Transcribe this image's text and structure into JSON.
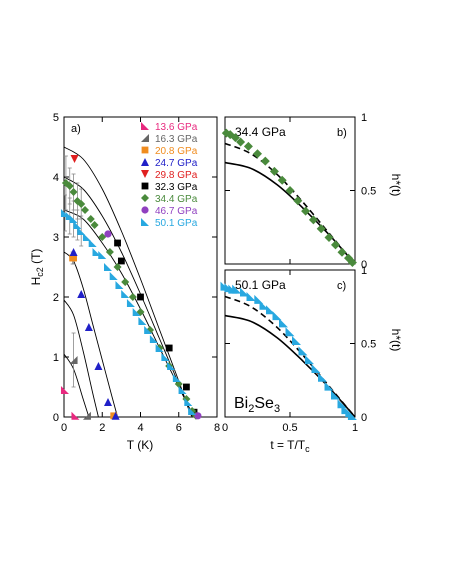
{
  "chart_data": [
    {
      "type": "scatter",
      "panel_label": "a)",
      "xlabel": "T (K)",
      "ylabel_main": "H",
      "ylabel_sub": "c2",
      "ylabel_unit": " (T)",
      "xlim": [
        0,
        8
      ],
      "ylim": [
        0,
        5
      ],
      "xticks": [
        0,
        2,
        4,
        6,
        8
      ],
      "yticks": [
        0,
        1,
        2,
        3,
        4,
        5
      ],
      "legend_position": "top-right",
      "series": [
        {
          "name": "13.6 GPa",
          "color": "#e8297f",
          "marker": "triangle-left",
          "points": [
            [
              0.05,
              0.45
            ],
            [
              0.6,
              0.02
            ]
          ]
        },
        {
          "name": "16.3 GPa",
          "color": "#666666",
          "marker": "triangle-right",
          "points": [
            [
              0.5,
              0.95
            ],
            [
              1.2,
              0.02
            ]
          ],
          "errors": [
            0.45,
            0
          ]
        },
        {
          "name": "20.8 GPa",
          "color": "#f08c1e",
          "marker": "square",
          "points": [
            [
              0.45,
              2.65
            ],
            [
              0.5,
              2.65
            ],
            [
              2.6,
              0.02
            ]
          ],
          "errors": [
            0.1,
            0.1,
            0
          ]
        },
        {
          "name": "24.7 GPa",
          "color": "#2020c8",
          "marker": "triangle-up",
          "points": [
            [
              0.5,
              2.75
            ],
            [
              0.9,
              2.05
            ],
            [
              1.3,
              1.5
            ],
            [
              1.8,
              0.85
            ],
            [
              2.3,
              0.25
            ],
            [
              2.7,
              0.02
            ]
          ]
        },
        {
          "name": "29.8 GPa",
          "color": "#e02020",
          "marker": "triangle-down",
          "points": [
            [
              0.55,
              4.3
            ]
          ]
        },
        {
          "name": "32.3 GPa",
          "color": "#000000",
          "marker": "square",
          "points": [
            [
              2.8,
              2.9
            ],
            [
              3.0,
              2.6
            ],
            [
              4.0,
              2.0
            ],
            [
              5.5,
              1.15
            ],
            [
              6.4,
              0.5
            ],
            [
              6.8,
              0.08
            ]
          ]
        },
        {
          "name": "34.4 GPa",
          "color": "#4a8a3c",
          "marker": "diamond",
          "points": [
            [
              0.1,
              3.9
            ],
            [
              0.3,
              3.85
            ],
            [
              0.5,
              3.75
            ],
            [
              0.7,
              3.6
            ],
            [
              0.9,
              3.55
            ],
            [
              1.1,
              3.45
            ],
            [
              1.4,
              3.3
            ],
            [
              1.6,
              3.2
            ],
            [
              2.0,
              3.0
            ],
            [
              2.4,
              2.75
            ],
            [
              2.8,
              2.5
            ],
            [
              3.2,
              2.25
            ],
            [
              3.6,
              2.0
            ],
            [
              4.0,
              1.75
            ],
            [
              4.5,
              1.45
            ],
            [
              5.0,
              1.15
            ],
            [
              5.5,
              0.85
            ],
            [
              6.0,
              0.55
            ],
            [
              6.4,
              0.3
            ],
            [
              6.7,
              0.1
            ],
            [
              6.9,
              0.02
            ]
          ],
          "errors": [
            0.45,
            0.3,
            0.3,
            0.3,
            0.25,
            0,
            0,
            0,
            0,
            0,
            0,
            0,
            0,
            0,
            0,
            0,
            0,
            0,
            0,
            0,
            0
          ]
        },
        {
          "name": "46.7 GPa",
          "color": "#9040c0",
          "marker": "circle",
          "points": [
            [
              2.3,
              3.05
            ],
            [
              7.0,
              0.02
            ]
          ]
        },
        {
          "name": "50.1 GPa",
          "color": "#28a8e0",
          "marker": "triangle-left",
          "points": [
            [
              0.05,
              3.4
            ],
            [
              0.3,
              3.35
            ],
            [
              0.5,
              3.3
            ],
            [
              0.7,
              3.2
            ],
            [
              0.9,
              3.1
            ],
            [
              1.2,
              3.0
            ],
            [
              1.5,
              2.9
            ],
            [
              1.7,
              2.75
            ],
            [
              2.0,
              2.7
            ],
            [
              2.3,
              2.5
            ],
            [
              2.6,
              2.35
            ],
            [
              2.9,
              2.2
            ],
            [
              3.2,
              2.05
            ],
            [
              3.5,
              1.9
            ],
            [
              3.8,
              1.75
            ],
            [
              4.1,
              1.6
            ],
            [
              4.4,
              1.45
            ],
            [
              4.7,
              1.3
            ],
            [
              5.0,
              1.15
            ],
            [
              5.3,
              1.0
            ],
            [
              5.6,
              0.85
            ],
            [
              5.9,
              0.65
            ],
            [
              6.2,
              0.45
            ],
            [
              6.5,
              0.25
            ],
            [
              6.7,
              0.1
            ]
          ],
          "errors": [
            0.3,
            0.3,
            0.3,
            0.25,
            0.25,
            0,
            0,
            0,
            0,
            0,
            0,
            0,
            0,
            0,
            0,
            0,
            0,
            0,
            0,
            0,
            0,
            0,
            0,
            0,
            0
          ]
        }
      ],
      "fit_curves": [
        {
          "points": [
            [
              0,
              4.5
            ],
            [
              1,
              4.3
            ],
            [
              2,
              3.8
            ],
            [
              3,
              3.1
            ],
            [
              4,
              2.3
            ],
            [
              5,
              1.45
            ],
            [
              6,
              0.6
            ],
            [
              6.6,
              0.05
            ]
          ]
        },
        {
          "points": [
            [
              0,
              4.0
            ],
            [
              1,
              3.8
            ],
            [
              2,
              3.35
            ],
            [
              3,
              2.75
            ],
            [
              4,
              2.05
            ],
            [
              5,
              1.3
            ],
            [
              6,
              0.55
            ],
            [
              6.7,
              0.0
            ]
          ]
        },
        {
          "points": [
            [
              0,
              3.45
            ],
            [
              1,
              3.3
            ],
            [
              2,
              2.9
            ],
            [
              3,
              2.4
            ],
            [
              4,
              1.8
            ],
            [
              5,
              1.15
            ],
            [
              6,
              0.5
            ],
            [
              6.8,
              0.0
            ]
          ]
        },
        {
          "points": [
            [
              0,
              2.75
            ],
            [
              0.5,
              2.6
            ],
            [
              1,
              2.15
            ],
            [
              1.5,
              1.55
            ],
            [
              2,
              0.95
            ],
            [
              2.5,
              0.35
            ],
            [
              2.8,
              0.0
            ]
          ]
        },
        {
          "points": [
            [
              0,
              1.95
            ],
            [
              0.5,
              1.7
            ],
            [
              1,
              1.1
            ],
            [
              1.5,
              0.4
            ],
            [
              1.8,
              0.0
            ]
          ]
        },
        {
          "points": [
            [
              0,
              1.05
            ],
            [
              0.5,
              0.8
            ],
            [
              1,
              0.3
            ],
            [
              1.3,
              0.0
            ]
          ]
        }
      ]
    },
    {
      "type": "scatter",
      "panel_label": "b)",
      "annotation": "34.4 GPa",
      "xlabel": "",
      "ylabel": "h*(t)",
      "xlim": [
        0,
        1
      ],
      "ylim": [
        0,
        1
      ],
      "yticks_labels": [
        "0",
        "0.5",
        "1"
      ],
      "series": [
        {
          "name": "34.4 GPa",
          "color": "#4a8a3c",
          "marker": "diamond",
          "points": [
            [
              0.01,
              0.89
            ],
            [
              0.04,
              0.88
            ],
            [
              0.08,
              0.86
            ],
            [
              0.12,
              0.83
            ],
            [
              0.18,
              0.8
            ],
            [
              0.25,
              0.75
            ],
            [
              0.31,
              0.7
            ],
            [
              0.38,
              0.63
            ],
            [
              0.44,
              0.57
            ],
            [
              0.5,
              0.5
            ],
            [
              0.56,
              0.43
            ],
            [
              0.62,
              0.36
            ],
            [
              0.68,
              0.3
            ],
            [
              0.74,
              0.24
            ],
            [
              0.8,
              0.18
            ],
            [
              0.85,
              0.13
            ],
            [
              0.9,
              0.08
            ],
            [
              0.95,
              0.04
            ],
            [
              0.98,
              0.01
            ]
          ]
        }
      ],
      "reference_curves": [
        {
          "style": "dashed",
          "points": [
            [
              0,
              0.82
            ],
            [
              0.2,
              0.75
            ],
            [
              0.4,
              0.61
            ],
            [
              0.6,
              0.42
            ],
            [
              0.8,
              0.21
            ],
            [
              1,
              0
            ]
          ]
        },
        {
          "style": "solid",
          "points": [
            [
              0,
              0.69
            ],
            [
              0.2,
              0.65
            ],
            [
              0.4,
              0.54
            ],
            [
              0.6,
              0.38
            ],
            [
              0.8,
              0.2
            ],
            [
              1,
              0
            ]
          ]
        }
      ]
    },
    {
      "type": "scatter",
      "panel_label": "c)",
      "annotation": "50.1 GPa",
      "compound_base": "Bi",
      "compound_sub1": "2",
      "compound_mid": "Se",
      "compound_sub2": "3",
      "xlabel_main": "t = T/T",
      "xlabel_sub": "c",
      "ylabel": "h*(t)",
      "xlim": [
        0,
        1
      ],
      "ylim": [
        0,
        1
      ],
      "xticks_labels": [
        "0",
        "0.5",
        "1"
      ],
      "yticks_labels": [
        "0",
        "0.5",
        "1"
      ],
      "series": [
        {
          "name": "50.1 GPa",
          "color": "#28a8e0",
          "marker": "triangle-left",
          "points": [
            [
              0.0,
              0.89
            ],
            [
              0.03,
              0.88
            ],
            [
              0.06,
              0.87
            ],
            [
              0.09,
              0.87
            ],
            [
              0.15,
              0.85
            ],
            [
              0.2,
              0.82
            ],
            [
              0.26,
              0.8
            ],
            [
              0.3,
              0.76
            ],
            [
              0.35,
              0.73
            ],
            [
              0.4,
              0.69
            ],
            [
              0.45,
              0.64
            ],
            [
              0.5,
              0.58
            ],
            [
              0.55,
              0.52
            ],
            [
              0.6,
              0.45
            ],
            [
              0.65,
              0.39
            ],
            [
              0.7,
              0.33
            ],
            [
              0.75,
              0.27
            ],
            [
              0.8,
              0.21
            ],
            [
              0.85,
              0.15
            ],
            [
              0.9,
              0.09
            ],
            [
              0.93,
              0.05
            ],
            [
              0.96,
              0.03
            ],
            [
              0.98,
              0.01
            ]
          ]
        }
      ],
      "reference_curves": [
        {
          "style": "dashed",
          "points": [
            [
              0,
              0.82
            ],
            [
              0.2,
              0.75
            ],
            [
              0.4,
              0.61
            ],
            [
              0.6,
              0.42
            ],
            [
              0.8,
              0.21
            ],
            [
              1,
              0
            ]
          ]
        },
        {
          "style": "solid",
          "points": [
            [
              0,
              0.69
            ],
            [
              0.2,
              0.65
            ],
            [
              0.4,
              0.54
            ],
            [
              0.6,
              0.38
            ],
            [
              0.8,
              0.2
            ],
            [
              1,
              0
            ]
          ]
        }
      ]
    }
  ]
}
